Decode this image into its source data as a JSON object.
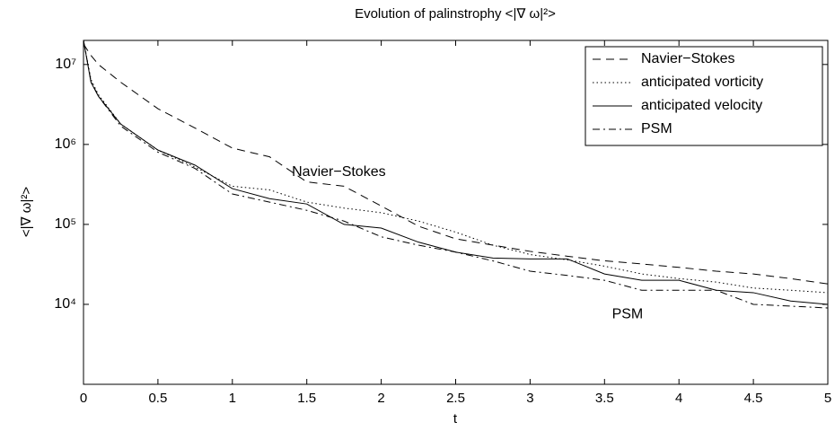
{
  "chart_data": {
    "type": "line",
    "title": "Evolution of palinstrophy <|∇ ω|²>",
    "x_label": "t",
    "y_label": "<|∇ ω|²>",
    "log_y": true,
    "legend_position": "upper-right",
    "x": [
      0,
      0.05,
      0.1,
      0.25,
      0.5,
      0.75,
      1,
      1.25,
      1.5,
      1.75,
      2,
      2.25,
      2.5,
      2.75,
      3,
      3.25,
      3.5,
      3.75,
      4,
      4.25,
      4.5,
      4.75,
      5
    ],
    "series": [
      {
        "name": "Navier−Stokes",
        "color": "#000000",
        "style": "dashed",
        "values": [
          18000000,
          13000000,
          10000000,
          6000000,
          2800000,
          1600000,
          900000,
          700000,
          340000,
          300000,
          170000,
          95000,
          66000,
          55000,
          46000,
          40000,
          35000,
          32000,
          29000,
          26000,
          24000,
          21000,
          18000
        ]
      },
      {
        "name": "anticipated vorticity",
        "color": "#000000",
        "style": "dotted",
        "values": [
          20000000,
          6500000,
          4200000,
          1800000,
          850000,
          520000,
          300000,
          270000,
          190000,
          160000,
          140000,
          110000,
          80000,
          55000,
          42000,
          36000,
          30000,
          24000,
          21000,
          19000,
          16000,
          15000,
          14000
        ]
      },
      {
        "name": "anticipated velocity",
        "color": "#000000",
        "style": "solid",
        "values": [
          20000000,
          6000000,
          4000000,
          1800000,
          850000,
          550000,
          280000,
          210000,
          180000,
          100000,
          90000,
          60000,
          45000,
          38000,
          37000,
          37000,
          24000,
          20000,
          20000,
          15000,
          14000,
          11000,
          10000
        ]
      },
      {
        "name": "PSM",
        "color": "#000000",
        "style": "dashdot",
        "values": [
          20000000,
          6200000,
          4000000,
          1700000,
          800000,
          500000,
          240000,
          190000,
          150000,
          110000,
          70000,
          55000,
          45000,
          35000,
          26000,
          23000,
          20000,
          15000,
          15000,
          15000,
          10000,
          9500,
          9000
        ]
      }
    ],
    "annotations": [
      {
        "text": "Navier−Stokes",
        "x": 1.4,
        "y": 450000
      },
      {
        "text": "PSM",
        "x": 3.55,
        "y": 7500
      }
    ],
    "xlim": [
      0,
      5
    ],
    "xticks": [
      0,
      0.5,
      1,
      1.5,
      2,
      2.5,
      3,
      3.5,
      4,
      4.5,
      5
    ],
    "ylim": [
      1000,
      20000000
    ],
    "yticks": [
      {
        "value": 10000,
        "label": "10⁴"
      },
      {
        "value": 100000,
        "label": "10⁵"
      },
      {
        "value": 1000000,
        "label": "10⁶"
      },
      {
        "value": 10000000,
        "label": "10⁷"
      }
    ]
  }
}
